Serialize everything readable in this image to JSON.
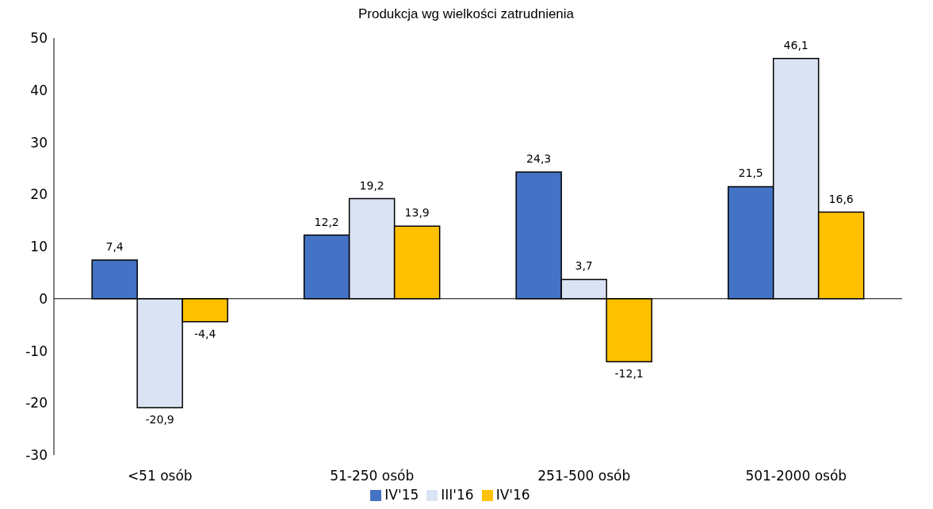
{
  "chart_data": {
    "type": "bar",
    "title": "Produkcja wg wielkości zatrudnienia",
    "categories": [
      "<51 osób",
      "51-250 osób",
      "251-500 osób",
      "501-2000 osób"
    ],
    "series": [
      {
        "name": "IV'15",
        "color": "#4472c4",
        "values": [
          7.4,
          12.2,
          24.3,
          21.5
        ],
        "value_labels": [
          "7,4",
          "12,2",
          "24,3",
          "21,5"
        ]
      },
      {
        "name": "III'16",
        "color": "#dae3f3",
        "values": [
          -20.9,
          19.2,
          3.7,
          46.1
        ],
        "value_labels": [
          "-20,9",
          "19,2",
          "3,7",
          "46,1"
        ]
      },
      {
        "name": "IV'16",
        "color": "#ffc000",
        "values": [
          -4.4,
          13.9,
          -12.1,
          16.6
        ],
        "value_labels": [
          "-4,4",
          "13,9",
          "-12,1",
          "16,6"
        ]
      }
    ],
    "ylim": [
      -30,
      50
    ],
    "yticks": [
      -30,
      -20,
      -10,
      0,
      10,
      20,
      30,
      40,
      50
    ],
    "legend": "bottom"
  }
}
